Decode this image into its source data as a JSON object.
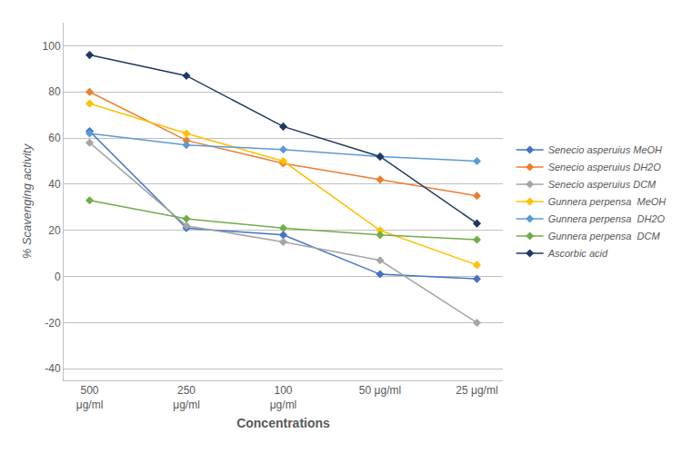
{
  "chart_data": {
    "type": "line",
    "categories": [
      "500\nμg/ml",
      "250\nμg/ml",
      "100\nμg/ml",
      "50 μg/ml",
      "25 μg/ml"
    ],
    "series": [
      {
        "name": "Senecio asperuius MeOH",
        "color": "#4472C4",
        "values": [
          63,
          21,
          18,
          1,
          -1
        ]
      },
      {
        "name": "Senecio asperuius DH2O",
        "color": "#ED7D31",
        "values": [
          80,
          59,
          49,
          42,
          35
        ]
      },
      {
        "name": "Senecio asperuius DCM",
        "color": "#A5A5A5",
        "values": [
          58,
          22,
          15,
          7,
          -20
        ]
      },
      {
        "name": "Gunnera perpensa  MeOH",
        "color": "#FFC000",
        "values": [
          75,
          62,
          50,
          20,
          5
        ]
      },
      {
        "name": "Gunnera perpensa  DH2O",
        "color": "#5B9BD5",
        "values": [
          62,
          57,
          55,
          52,
          50
        ]
      },
      {
        "name": "Gunnera perpensa  DCM",
        "color": "#70AD47",
        "values": [
          33,
          25,
          21,
          18,
          16
        ]
      },
      {
        "name": "Ascorbic acid",
        "color": "#1F3864",
        "values": [
          96,
          87,
          65,
          52,
          23
        ]
      }
    ],
    "xlabel": "Concentrations",
    "ylabel": "% Scavenging activity",
    "ylim": [
      -45,
      110
    ],
    "yticks": [
      -40,
      -20,
      0,
      20,
      40,
      60,
      80,
      100
    ],
    "grid": true,
    "legend": "right",
    "marker": "diamond",
    "line_style": "solid"
  }
}
